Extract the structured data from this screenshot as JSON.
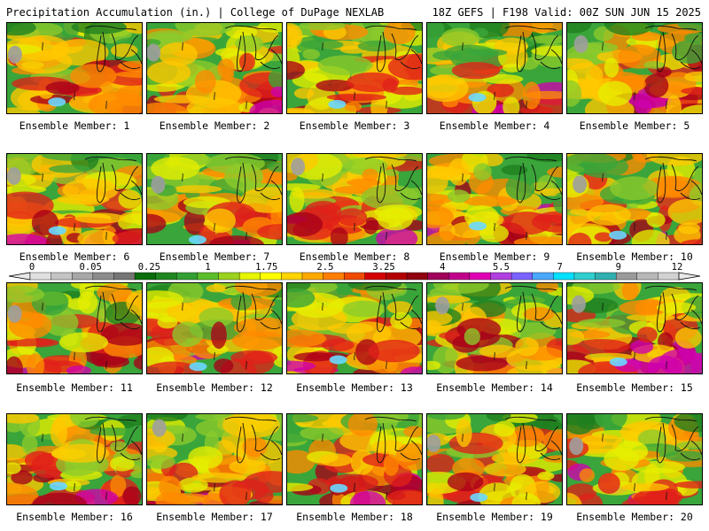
{
  "title_left": "Precipitation Accumulation (in.) | College of DuPage NEXLAB",
  "title_right": "18Z GEFS | F198 Valid: 00Z SUN JUN 15 2025",
  "member_label_prefix": "Ensemble Member:",
  "members": [
    1,
    2,
    3,
    4,
    5,
    6,
    7,
    8,
    9,
    10,
    11,
    12,
    13,
    14,
    15,
    16,
    17,
    18,
    19,
    20
  ],
  "legend": {
    "labels": [
      "0",
      "0.05",
      "0.25",
      "1",
      "1.75",
      "2.5",
      "3.25",
      "4",
      "5.5",
      "7",
      "9",
      "12"
    ],
    "colors": [
      "#e0e0e0",
      "#c4c4c4",
      "#a8a8a8",
      "#8c8c8c",
      "#757575",
      "#0a6e0a",
      "#1f861f",
      "#32a032",
      "#5bbf2b",
      "#9bd21e",
      "#e6f500",
      "#ffff00",
      "#ffd400",
      "#ffa800",
      "#ff7e00",
      "#f04a00",
      "#d40000",
      "#b30000",
      "#900010",
      "#a0005a",
      "#c0008a",
      "#e000b4",
      "#b040e0",
      "#7a62ff",
      "#4aa8ff",
      "#00e0ff",
      "#2fcfcf",
      "#30b0b0",
      "#9a9a9a",
      "#b8b8b8",
      "#d2d2d2"
    ]
  },
  "map_colors": {
    "dark_green": "#1f7f1f",
    "green": "#3aa53a",
    "light_green": "#8ccb2c",
    "yellow": "#e6ee00",
    "gold": "#ffc800",
    "orange": "#ff8a00",
    "red": "#e0201a",
    "dark_red": "#a80018",
    "magenta": "#d000b0",
    "violet": "#9a40e0",
    "cyan": "#6ad8ff",
    "gray": "#9e9e9e"
  }
}
